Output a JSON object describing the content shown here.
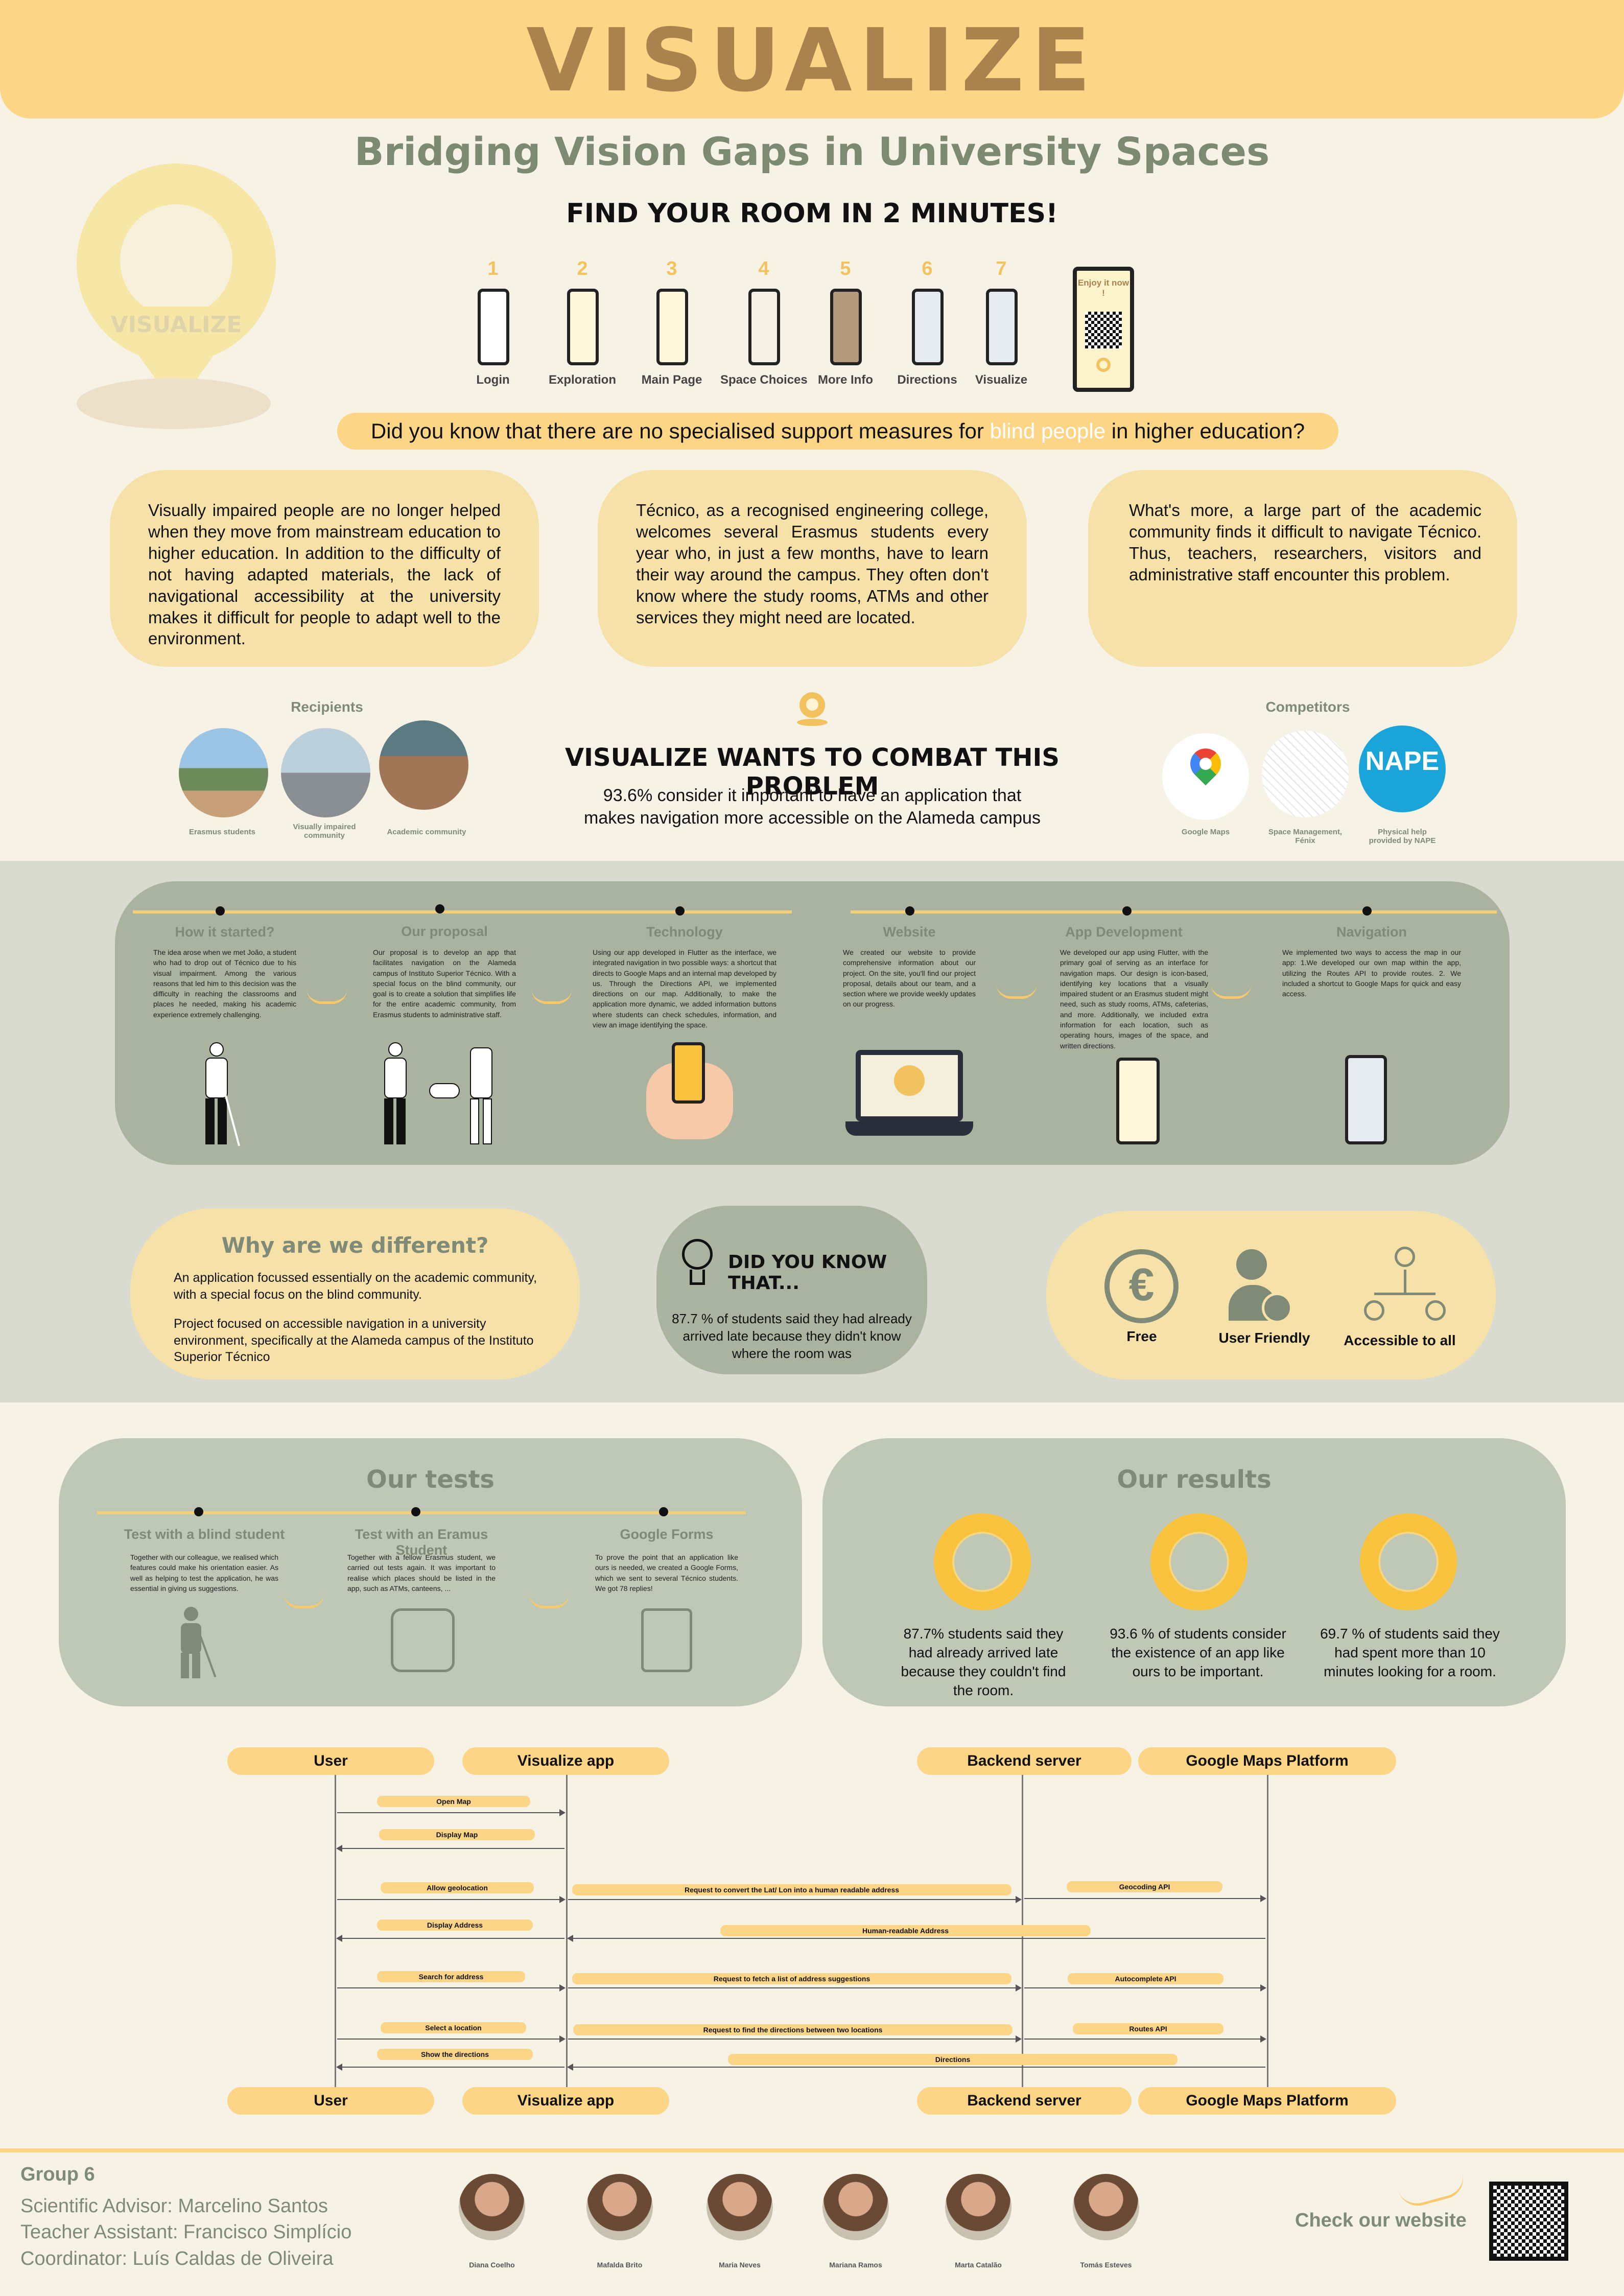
{
  "header": {
    "title": "VISUALIZE"
  },
  "subtitle": "Bridging Vision Gaps in University Spaces",
  "headline": "FIND YOUR ROOM IN 2 MINUTES!",
  "logo": {
    "text": "VISUALIZE"
  },
  "steps": [
    {
      "num": "1",
      "label": "Login"
    },
    {
      "num": "2",
      "label": "Exploration"
    },
    {
      "num": "3",
      "label": "Main Page"
    },
    {
      "num": "4",
      "label": "Space Choices"
    },
    {
      "num": "5",
      "label": "More Info"
    },
    {
      "num": "6",
      "label": "Directions"
    },
    {
      "num": "7",
      "label": "Visualize"
    }
  ],
  "enjoy": "Enjoy it now !",
  "question": {
    "before": "Did you know that there are no specialised support measures for ",
    "highlight": "blind people",
    "after": " in higher education?"
  },
  "boxes": [
    "Visually impaired people are no longer helped when they move from mainstream education to higher education. In addition to the difficulty of not having adapted materials, the lack of navigational accessibility at the university makes it difficult for people to adapt well to the environment.",
    "Técnico, as a recognised engineering college, welcomes several Erasmus students every year who, in just a few months, have to learn their way around the campus. They often don't know where the study rooms, ATMs and other services they might need are located.",
    "What's more, a large part of the academic community finds it difficult to navigate Técnico. Thus, teachers, researchers, visitors and administrative staff encounter this problem."
  ],
  "recipients": {
    "title": "Recipients",
    "items": [
      "Erasmus students",
      "Visually impaired community",
      "Academic community"
    ]
  },
  "combat": {
    "title": "VISUALIZE WANTS TO COMBAT THIS PROBLEM",
    "text": "93.6% consider it important to have an application that makes navigation more accessible on the Alameda campus"
  },
  "competitors": {
    "title": "Competitors",
    "items": [
      "Google Maps",
      "Space Management, Fénix",
      "Physical help provided by NAPE"
    ],
    "nape": "NAPE"
  },
  "timeline": [
    {
      "title": "How it started?",
      "text": "The idea arose when we met João, a student who had to drop out of Técnico due to his visual impairment. Among the various reasons that led him to this decision was the difficulty in reaching the classrooms and places he needed, making his academic experience extremely challenging."
    },
    {
      "title": "Our proposal",
      "text": "Our proposal is to develop an app that facilitates navigation on the Alameda campus of Instituto Superior Técnico. With a special focus on the blind community, our goal is to create a solution that simplifies life for the entire academic community, from Erasmus students to administrative staff."
    },
    {
      "title": "Technology",
      "text": "Using our app developed in Flutter as the interface, we integrated navigation in two possible ways: a shortcut that directs to Google Maps and an internal map developed by us. Through the Directions API, we implemented directions on our map. Additionally, to make the application more dynamic, we added information buttons where students can check schedules, information, and view an image identifying the space."
    },
    {
      "title": "Website",
      "text": "We created our website to provide comprehensive information about our project. On the site, you'll find our project proposal, details about our team, and a section where we provide weekly updates on our progress."
    },
    {
      "title": "App Development",
      "text": "We developed our app using Flutter, with the primary goal of serving as an interface for navigation maps. Our design is icon-based, identifying key locations that a visually impaired student or an Erasmus student might need, such as study rooms, ATMs, cafeterias, and more. Additionally, we included extra information for each location, such as operating hours, images of the space, and written directions."
    },
    {
      "title": "Navigation",
      "text": "We implemented two ways to access the map in our app: 1.We developed our own map within the app, utilizing the Routes API to provide routes. 2. We included a shortcut to Google Maps for quick and easy access."
    }
  ],
  "different": {
    "title": "Why are we different?",
    "p1": "An application focussed essentially on the academic community, with a special focus on the blind community.",
    "p2": "Project focused on accessible navigation in a university environment, specifically at the Alameda campus of the Instituto Superior Técnico"
  },
  "didyouknow": {
    "title": "DID YOU KNOW THAT...",
    "text": "87.7 % of students said they had already arrived late because they didn't know where the room was"
  },
  "features": [
    "Free",
    "User Friendly",
    "Accessible to all"
  ],
  "tests": {
    "title": "Our tests",
    "items": [
      {
        "title": "Test with a blind student",
        "text": "Together with our colleague, we realised which features could make his orientation easier. As well as helping to test the application, he was essential in giving us suggestions."
      },
      {
        "title": "Test with an Eramus Student",
        "text": "Together with a fellow Erasmus student, we carried out tests again. It was important to realise which places should be listed in the app, such as ATMs, canteens, ..."
      },
      {
        "title": "Google Forms",
        "text": "To prove the point that an application like ours is needed, we created a Google Forms, which we sent to several Técnico students. We got 78 replies!"
      }
    ]
  },
  "results": {
    "title": "Our results",
    "items": [
      {
        "value": 87.7,
        "text": "87.7% students said they had already arrived late because they couldn't find the room."
      },
      {
        "value": 93.6,
        "text": "93.6 % of students consider the existence of an app like ours to be important."
      },
      {
        "value": 69.7,
        "text": "69.7 % of students said they had spent more than 10 minutes looking for a room."
      }
    ]
  },
  "sequence": {
    "actors": [
      "User",
      "Visualize app",
      "Backend server",
      "Google Maps Platform"
    ],
    "messages": {
      "open_map": "Open Map",
      "display_map": "Display Map",
      "allow_geo": "Allow geolocation",
      "req_convert": "Request to convert the Lat/ Lon into a human readable  address",
      "geocoding": "Geocoding API",
      "human_addr": "Human-readable Address",
      "display_addr": "Display Address",
      "search_addr": "Search for address",
      "req_fetch": "Request to fetch a list of address suggestions",
      "autocomplete": "Autocomplete API",
      "select_loc": "Select  a location",
      "req_dir": "Request to find the directions between two locations",
      "routes": "Routes API",
      "show_dir": "Show the directions",
      "directions": "Directions"
    }
  },
  "footer": {
    "group": "Group 6",
    "advisor": "Scientific Advisor: Marcelino Santos",
    "assistant": "Teacher Assistant: Francisco Simplício",
    "coordinator": "Coordinator: Luís Caldas de Oliveira",
    "team": [
      "Diana Coelho",
      "Mafalda Brito",
      "Maria Neves",
      "Mariana Ramos",
      "Marta Catalão",
      "Tomás Esteves"
    ],
    "check": "Check our website"
  }
}
